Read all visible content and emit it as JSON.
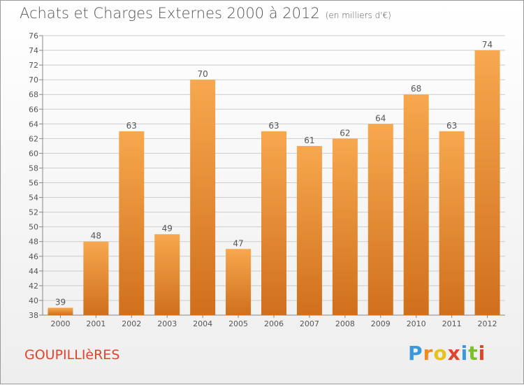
{
  "title": "Achats et Charges Externes 2000 à 2012",
  "subtitle": "(en milliers d'€)",
  "commune": "GOUPILLIèRES",
  "logo": {
    "letters": [
      "P",
      "r",
      "o",
      "x",
      "i",
      "t",
      "i"
    ],
    "colors": [
      "#3a9ad9",
      "#f08a1c",
      "#e8c21a",
      "#e0452b",
      "#3a9ad9",
      "#7bbf2a",
      "#e0452b"
    ]
  },
  "colors": {
    "bar_top": "#f7a84e",
    "bar_bottom": "#d06f1c",
    "text": "#555555",
    "grid": "#cccccc"
  },
  "chart_data": {
    "type": "bar",
    "categories": [
      "2000",
      "2001",
      "2002",
      "2003",
      "2004",
      "2005",
      "2006",
      "2007",
      "2008",
      "2009",
      "2010",
      "2011",
      "2012"
    ],
    "values": [
      39,
      48,
      63,
      49,
      70,
      47,
      63,
      61,
      62,
      64,
      68,
      63,
      74
    ],
    "ylim": [
      38,
      76
    ],
    "yticks": [
      38,
      40,
      42,
      44,
      46,
      48,
      50,
      52,
      54,
      56,
      58,
      60,
      62,
      64,
      66,
      68,
      70,
      72,
      74,
      76
    ],
    "grid": "horizontal",
    "data_labels": true
  }
}
